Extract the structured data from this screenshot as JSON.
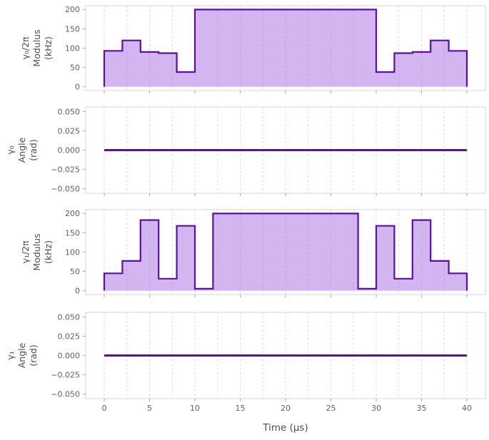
{
  "figure": {
    "background": "#ffffff",
    "line_color": "#5e0daa",
    "fill_color": "rgba(150,80,220,0.42)",
    "frame_color": "#d6d6dc",
    "grid_color": "#dcdce2",
    "tick_color": "#a6a8ae",
    "x_axis": {
      "label": "Time (μs)",
      "tick_values": [
        0,
        5,
        10,
        15,
        20,
        25,
        30,
        35,
        40
      ],
      "tick_labels": [
        "0",
        "5",
        "10",
        "15",
        "20",
        "25",
        "30",
        "35",
        "40"
      ],
      "minor_grid_step": 2.5,
      "grid_min": 0,
      "grid_max": 40,
      "xlim": [
        -2.05,
        42.05
      ]
    }
  },
  "chart_data": [
    {
      "type": "area",
      "name": "gamma0-modulus",
      "ylabel_lines": [
        "γ₀/2π",
        "Modulus",
        "(kHz)"
      ],
      "ytick_values": [
        0,
        50,
        100,
        150,
        200
      ],
      "ytick_labels": [
        "0",
        "50",
        "100",
        "150",
        "200"
      ],
      "ylim": [
        -10,
        210
      ],
      "steps": [
        {
          "t0": 0,
          "t1": 2,
          "v": 93
        },
        {
          "t0": 2,
          "t1": 4,
          "v": 120
        },
        {
          "t0": 4,
          "t1": 6,
          "v": 90
        },
        {
          "t0": 6,
          "t1": 8,
          "v": 87
        },
        {
          "t0": 8,
          "t1": 10,
          "v": 38
        },
        {
          "t0": 10,
          "t1": 30,
          "v": 200
        },
        {
          "t0": 30,
          "t1": 32,
          "v": 38
        },
        {
          "t0": 32,
          "t1": 34,
          "v": 87
        },
        {
          "t0": 34,
          "t1": 36,
          "v": 90
        },
        {
          "t0": 36,
          "t1": 38,
          "v": 120
        },
        {
          "t0": 38,
          "t1": 40,
          "v": 93
        }
      ]
    },
    {
      "type": "line",
      "name": "gamma0-angle",
      "ylabel_lines": [
        "γ₀",
        "Angle",
        "(rad)"
      ],
      "ytick_values": [
        0.05,
        0.025,
        0,
        -0.025,
        -0.05
      ],
      "ytick_labels": [
        "0.050",
        "0.025",
        "0.000",
        "−0.025",
        "−0.050"
      ],
      "ylim": [
        -0.056,
        0.056
      ],
      "x": [
        0,
        40
      ],
      "y": [
        0,
        0
      ]
    },
    {
      "type": "area",
      "name": "gamma1-modulus",
      "ylabel_lines": [
        "γ₁/2π",
        "Modulus",
        "(kHz)"
      ],
      "ytick_values": [
        0,
        50,
        100,
        150,
        200
      ],
      "ytick_labels": [
        "0",
        "50",
        "100",
        "150",
        "200"
      ],
      "ylim": [
        -10,
        210
      ],
      "steps": [
        {
          "t0": 0,
          "t1": 2,
          "v": 45
        },
        {
          "t0": 2,
          "t1": 4,
          "v": 77
        },
        {
          "t0": 4,
          "t1": 6,
          "v": 183
        },
        {
          "t0": 6,
          "t1": 8,
          "v": 31
        },
        {
          "t0": 8,
          "t1": 10,
          "v": 168
        },
        {
          "t0": 10,
          "t1": 12,
          "v": 5
        },
        {
          "t0": 12,
          "t1": 28,
          "v": 200
        },
        {
          "t0": 28,
          "t1": 30,
          "v": 5
        },
        {
          "t0": 30,
          "t1": 32,
          "v": 168
        },
        {
          "t0": 32,
          "t1": 34,
          "v": 31
        },
        {
          "t0": 34,
          "t1": 36,
          "v": 183
        },
        {
          "t0": 36,
          "t1": 38,
          "v": 77
        },
        {
          "t0": 38,
          "t1": 40,
          "v": 45
        }
      ]
    },
    {
      "type": "line",
      "name": "gamma1-angle",
      "ylabel_lines": [
        "γ₁",
        "Angle",
        "(rad)"
      ],
      "ytick_values": [
        0.05,
        0.025,
        0,
        -0.025,
        -0.05
      ],
      "ytick_labels": [
        "0.050",
        "0.025",
        "0.000",
        "−0.025",
        "−0.050"
      ],
      "ylim": [
        -0.056,
        0.056
      ],
      "x": [
        0,
        40
      ],
      "y": [
        0,
        0
      ]
    }
  ]
}
